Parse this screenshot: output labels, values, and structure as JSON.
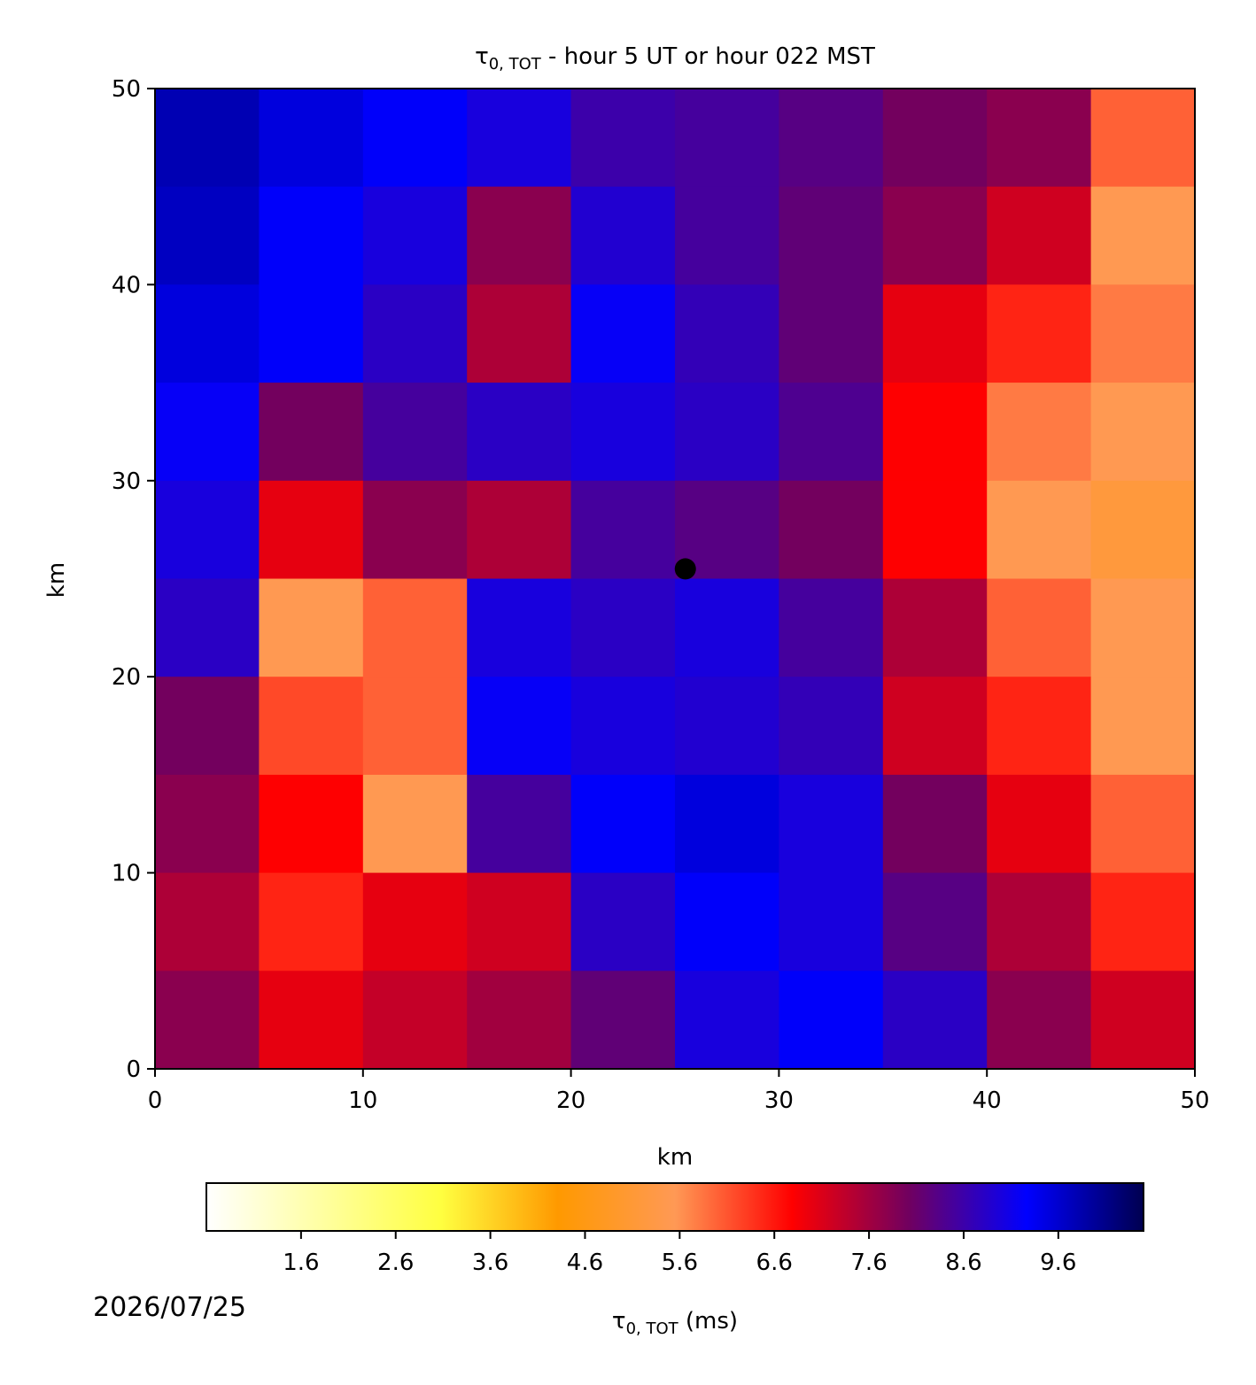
{
  "chart_data": {
    "type": "heatmap",
    "title": {
      "symbol": "τ",
      "subscript": "0, TOT",
      "text": " - hour 5 UT or hour 022 MST"
    },
    "xlabel": "km",
    "ylabel": "km",
    "xlim": [
      0,
      50
    ],
    "ylim": [
      0,
      50
    ],
    "xticks": [
      0,
      10,
      20,
      30,
      40,
      50
    ],
    "yticks": [
      0,
      10,
      20,
      30,
      40,
      50
    ],
    "z": [
      [
        9.8,
        9.5,
        9.3,
        9.0,
        8.6,
        8.5,
        8.3,
        8.0,
        7.8,
        6.0
      ],
      [
        9.7,
        9.3,
        9.0,
        7.8,
        8.9,
        8.5,
        8.2,
        7.8,
        7.2,
        5.5
      ],
      [
        9.5,
        9.3,
        8.8,
        7.5,
        9.2,
        8.7,
        8.2,
        7.0,
        6.5,
        5.8
      ],
      [
        9.2,
        8.0,
        8.5,
        8.8,
        9.0,
        8.8,
        8.4,
        6.8,
        5.8,
        5.5
      ],
      [
        9.0,
        7.0,
        7.8,
        7.5,
        8.5,
        8.3,
        8.0,
        6.8,
        5.5,
        5.2
      ],
      [
        8.8,
        5.5,
        6.0,
        9.0,
        8.8,
        9.0,
        8.5,
        7.5,
        6.0,
        5.5
      ],
      [
        8.0,
        6.2,
        6.0,
        9.2,
        9.0,
        8.9,
        8.7,
        7.2,
        6.5,
        5.5
      ],
      [
        7.8,
        6.8,
        5.5,
        8.5,
        9.3,
        9.5,
        9.0,
        8.0,
        7.0,
        6.0
      ],
      [
        7.5,
        6.5,
        7.0,
        7.2,
        8.8,
        9.3,
        9.0,
        8.3,
        7.5,
        6.5
      ],
      [
        7.8,
        7.0,
        7.3,
        7.6,
        8.2,
        9.0,
        9.3,
        8.8,
        7.8,
        7.2
      ]
    ],
    "point": {
      "x": 25.5,
      "y": 25.5,
      "color": "#000000"
    },
    "colormap": [
      "#ffffff",
      "#ffffa0",
      "#ffff40",
      "#ff9900",
      "#ff9955",
      "#ff0000",
      "#700060",
      "#0000ff",
      "#000050"
    ],
    "clim": [
      0.6,
      10.5
    ],
    "cticks": [
      1.6,
      2.6,
      3.6,
      4.6,
      5.6,
      6.6,
      7.6,
      8.6,
      9.6
    ],
    "clabel": {
      "symbol": "τ",
      "subscript": "0, TOT",
      "text": " (ms)"
    },
    "date": "2026/07/25"
  }
}
